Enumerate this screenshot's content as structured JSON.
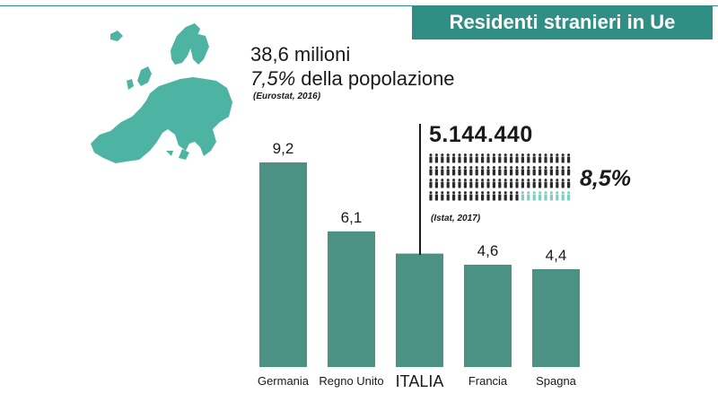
{
  "header": {
    "title": "Residenti stranieri in Ue"
  },
  "eu_stats": {
    "total": "38,6 milioni",
    "percent": "7,5%",
    "percent_text": "della popolazione",
    "source": "(Eurostat, 2016)"
  },
  "italy": {
    "total": "5.144.440",
    "percent": "8,5%",
    "source": "(Istat, 2017)",
    "pictogram": {
      "total_icons": 100,
      "highlighted_icons": 9
    }
  },
  "colors": {
    "accent": "#2f8f85",
    "bar": "#4b9284",
    "map": "#4db3a3",
    "highlight_icon": "#7fcfc1",
    "icon": "#2b2b2b"
  },
  "chart_data": {
    "type": "bar",
    "categories": [
      "Germania",
      "Regno Unito",
      "ITALIA",
      "Francia",
      "Spagna"
    ],
    "values": [
      9.2,
      6.1,
      5.1,
      4.6,
      4.4
    ],
    "value_labels": [
      "9,2",
      "6,1",
      "",
      "4,6",
      "4,4"
    ],
    "ylim": [
      0,
      9.2
    ],
    "grid": false
  }
}
